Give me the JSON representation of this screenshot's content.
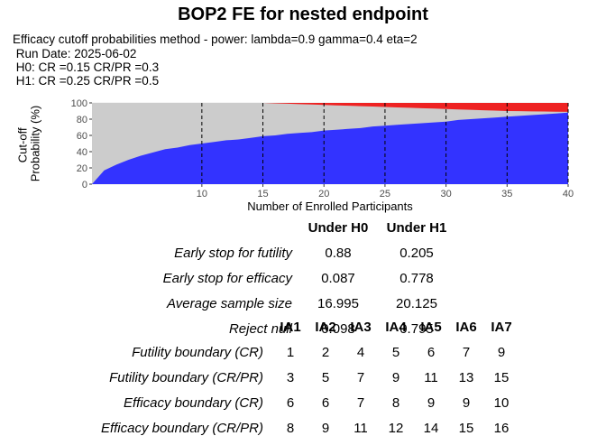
{
  "title": "BOP2 FE for nested endpoint",
  "subtitle_lines": [
    "Efficacy cutoff probabilities method - power: lambda=0.9 gamma=0.4 eta=2",
    " Run Date: 2025-06-02",
    " H0: CR =0.15 CR/PR =0.3",
    " H1: CR =0.25 CR/PR =0.5"
  ],
  "chart_data": {
    "type": "area",
    "xlabel": "Number of Enrolled Participants",
    "ylabel": "Cut-off\nProbability (%)",
    "xlim": [
      1,
      40
    ],
    "ylim": [
      0,
      100
    ],
    "x_ticks": [
      10,
      15,
      20,
      25,
      30,
      35,
      40
    ],
    "y_ticks": [
      0,
      20,
      40,
      60,
      80,
      100
    ],
    "interim_lines": [
      10,
      15,
      20,
      25,
      30,
      35,
      40
    ],
    "grid": true,
    "x": [
      1,
      2,
      3,
      4,
      5,
      6,
      7,
      8,
      9,
      10,
      11,
      12,
      13,
      14,
      15,
      16,
      17,
      18,
      19,
      20,
      21,
      22,
      23,
      24,
      25,
      26,
      27,
      28,
      29,
      30,
      31,
      32,
      33,
      34,
      35,
      36,
      37,
      38,
      39,
      40
    ],
    "series": [
      {
        "color": "#3333ff",
        "values": [
          0,
          17,
          24,
          30,
          35,
          39,
          43,
          45,
          48,
          50,
          52,
          54,
          55,
          57,
          59,
          60,
          62,
          63,
          64,
          66,
          67,
          68,
          69,
          71,
          72,
          73,
          74,
          75,
          76,
          77,
          79,
          80,
          81,
          82,
          83,
          84,
          85,
          86,
          87,
          88
        ]
      },
      {
        "color": "#cccccc",
        "values": [
          100,
          100,
          100,
          100,
          100,
          100,
          100,
          100,
          100,
          100,
          100,
          100,
          100,
          100,
          100,
          99.5,
          99,
          98.5,
          98,
          97.5,
          97,
          96.5,
          96,
          95.5,
          95,
          94.5,
          94,
          93.5,
          93,
          92.5,
          92,
          91.5,
          91,
          90.5,
          90,
          89.8,
          89.6,
          89.4,
          89.2,
          89
        ]
      },
      {
        "color": "#ee2222",
        "values": [
          100,
          100,
          100,
          100,
          100,
          100,
          100,
          100,
          100,
          100,
          100,
          100,
          100,
          100,
          100,
          100,
          100,
          100,
          100,
          100,
          100,
          100,
          100,
          100,
          100,
          100,
          100,
          100,
          100,
          100,
          100,
          100,
          100,
          100,
          100,
          100,
          100,
          100,
          100,
          100
        ]
      }
    ]
  },
  "summary": {
    "col_headers": [
      "Under H0",
      "Under H1"
    ],
    "rows": [
      {
        "label": "Early stop for futility",
        "h0": "0.88",
        "h1": "0.205"
      },
      {
        "label": "Early stop for efficacy",
        "h0": "0.087",
        "h1": "0.778"
      },
      {
        "label": "Average sample size",
        "h0": "16.995",
        "h1": "20.125"
      },
      {
        "label": "Reject null",
        "h0": "0.098",
        "h1": "0.795"
      }
    ]
  },
  "boundaries": {
    "col_headers": [
      "IA1",
      "IA2",
      "IA3",
      "IA4",
      "IA5",
      "IA6",
      "IA7"
    ],
    "rows": [
      {
        "label": "Futility boundary (CR)",
        "values": [
          "1",
          "2",
          "4",
          "5",
          "6",
          "7",
          "9"
        ]
      },
      {
        "label": "Futility boundary (CR/PR)",
        "values": [
          "3",
          "5",
          "7",
          "9",
          "11",
          "13",
          "15"
        ]
      },
      {
        "label": "Efficacy boundary (CR)",
        "values": [
          "6",
          "6",
          "7",
          "8",
          "9",
          "9",
          "10"
        ]
      },
      {
        "label": "Efficacy boundary (CR/PR)",
        "values": [
          "8",
          "9",
          "11",
          "12",
          "14",
          "15",
          "16"
        ]
      }
    ]
  }
}
